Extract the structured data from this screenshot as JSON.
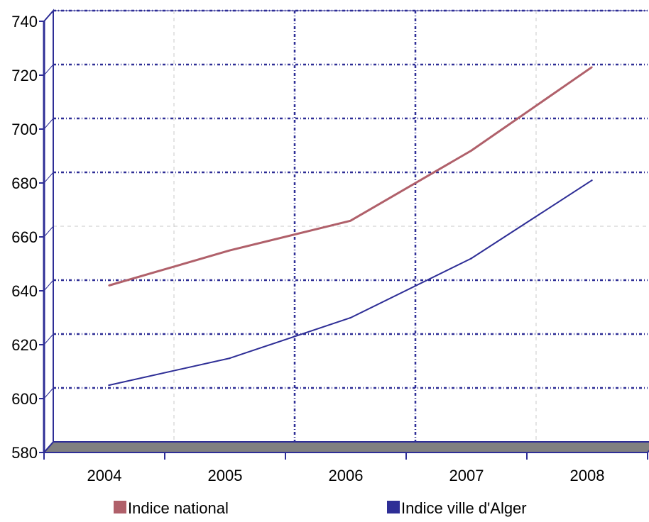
{
  "chart_data": {
    "type": "line",
    "categories": [
      "2004",
      "2005",
      "2006",
      "2007",
      "2008"
    ],
    "yticks": [
      "580",
      "600",
      "620",
      "640",
      "660",
      "680",
      "700",
      "720",
      "740"
    ],
    "ylim": [
      580,
      740
    ],
    "grid": true,
    "legend_position": "bottom",
    "series": [
      {
        "name": "Indice national",
        "values": [
          640,
          653,
          664,
          690,
          721
        ],
        "color": "#b0606a"
      },
      {
        "name": "Indice ville d'Alger",
        "values": [
          603,
          613,
          628,
          650,
          679
        ],
        "color": "#2e2e96"
      }
    ],
    "axis_color": "#2e2e96",
    "floor_color": "#808080"
  }
}
